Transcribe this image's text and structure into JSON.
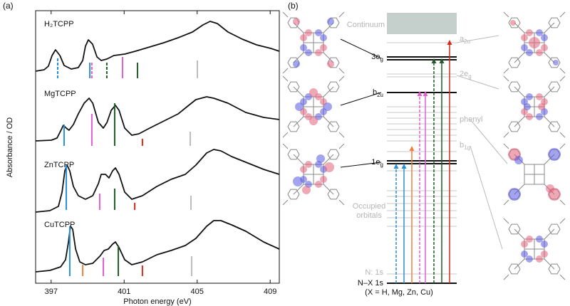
{
  "panel_labels": [
    "(a)",
    "(b)"
  ],
  "chart_data": {
    "type": "line",
    "xlabel": "Photon energy (eV)",
    "ylabel": "Absorbance / OD",
    "xlim": [
      396.15,
      409.5
    ],
    "ylim": [
      0,
      3.83
    ],
    "xticks": [
      397,
      401,
      405,
      409
    ],
    "series": [
      {
        "name": "H₂TCPP",
        "color": "#111111",
        "x": [
          396.15,
          396.62,
          396.85,
          397.05,
          397.24,
          397.48,
          397.71,
          398.1,
          398.49,
          398.73,
          398.88,
          399.04,
          399.27,
          399.51,
          399.74,
          400.05,
          400.44,
          401.03,
          401.61,
          402.4,
          403.18,
          403.96,
          404.74,
          405.32,
          405.71,
          406.1,
          406.69,
          407.47,
          408.25,
          409.03,
          409.5
        ],
        "values": [
          2.98,
          3.0,
          3.05,
          3.2,
          3.28,
          3.2,
          3.06,
          3.01,
          3.03,
          3.13,
          3.33,
          3.42,
          3.36,
          3.18,
          3.13,
          3.15,
          3.2,
          3.22,
          3.26,
          3.32,
          3.38,
          3.45,
          3.53,
          3.63,
          3.68,
          3.65,
          3.53,
          3.43,
          3.35,
          3.3,
          3.26
        ],
        "transitions": {
          "base": 2.88,
          "x": [
            397.36,
            399.12,
            399.23,
            400.05,
            400.91,
            401.73,
            405.01
          ],
          "values": [
            3.16,
            3.1,
            3.1,
            3.1,
            3.18,
            3.1,
            3.13
          ],
          "colors": [
            "#2a8fd6",
            "#2a8fd6",
            "#e060d0",
            "#1f5c2a",
            "#e060d0",
            "#1f5c2a",
            "#bdbdbd"
          ],
          "dashed": [
            true,
            false,
            true,
            true,
            false,
            false,
            false
          ]
        }
      },
      {
        "name": "MgTCPP",
        "color": "#111111",
        "x": [
          396.15,
          397.01,
          397.32,
          397.56,
          397.67,
          397.83,
          397.98,
          398.22,
          398.49,
          398.81,
          399.08,
          399.28,
          399.59,
          399.86,
          400.06,
          400.29,
          400.52,
          400.72,
          401.03,
          401.42,
          401.81,
          402.4,
          403.18,
          403.96,
          404.54,
          404.93,
          405.52,
          405.91,
          406.69,
          407.66,
          408.64,
          409.5
        ],
        "values": [
          2.0,
          2.01,
          2.04,
          2.16,
          2.22,
          2.18,
          2.15,
          2.23,
          2.38,
          2.53,
          2.6,
          2.53,
          2.26,
          2.18,
          2.26,
          2.43,
          2.5,
          2.43,
          2.18,
          2.08,
          2.1,
          2.18,
          2.28,
          2.38,
          2.5,
          2.58,
          2.62,
          2.6,
          2.53,
          2.4,
          2.33,
          2.3
        ],
        "transitions": {
          "base": 1.93,
          "x": [
            397.71,
            399.23,
            400.48,
            402.0,
            404.62
          ],
          "values": [
            2.23,
            2.38,
            2.53,
            2.03,
            2.13
          ],
          "colors": [
            "#2a8fd6",
            "#e060d0",
            "#1f5c2a",
            "#d42a1a",
            "#bdbdbd"
          ],
          "dashed": [
            false,
            false,
            false,
            false,
            false
          ]
        }
      },
      {
        "name": "ZnTCPP",
        "color": "#111111",
        "x": [
          396.15,
          396.93,
          397.4,
          397.6,
          397.75,
          397.87,
          398.02,
          398.22,
          398.49,
          398.88,
          399.28,
          399.59,
          399.74,
          399.98,
          400.17,
          400.37,
          400.52,
          400.72,
          401.03,
          401.42,
          402.0,
          402.79,
          403.57,
          404.35,
          404.93,
          405.52,
          405.91,
          406.3,
          406.89,
          407.67,
          408.64,
          409.5
        ],
        "values": [
          1.0,
          1.02,
          1.08,
          1.28,
          1.58,
          1.66,
          1.58,
          1.36,
          1.23,
          1.18,
          1.23,
          1.4,
          1.53,
          1.53,
          1.48,
          1.58,
          1.62,
          1.53,
          1.28,
          1.18,
          1.23,
          1.36,
          1.46,
          1.53,
          1.66,
          1.83,
          1.88,
          1.86,
          1.78,
          1.7,
          1.6,
          1.53
        ],
        "transitions": {
          "base": 1.03,
          "x": [
            397.83,
            399.66,
            400.48,
            401.58,
            404.66
          ],
          "values": [
            1.66,
            1.26,
            1.33,
            1.13,
            1.23
          ],
          "colors": [
            "#2a8fd6",
            "#e060d0",
            "#1f5c2a",
            "#d42a1a",
            "#bdbdbd"
          ],
          "dashed": [
            false,
            false,
            false,
            false,
            false
          ]
        }
      },
      {
        "name": "CuTCPP",
        "color": "#111111",
        "x": [
          396.15,
          396.93,
          397.52,
          397.79,
          397.95,
          398.06,
          398.18,
          398.34,
          398.57,
          398.88,
          399.28,
          399.67,
          399.9,
          400.13,
          400.37,
          400.52,
          400.72,
          401.03,
          401.42,
          402.0,
          402.79,
          403.57,
          404.35,
          404.93,
          405.52,
          405.91,
          406.3,
          406.89,
          407.67,
          408.64,
          409.5
        ],
        "values": [
          0.16,
          0.18,
          0.23,
          0.33,
          0.58,
          0.8,
          0.76,
          0.48,
          0.3,
          0.26,
          0.28,
          0.38,
          0.46,
          0.48,
          0.55,
          0.58,
          0.5,
          0.33,
          0.26,
          0.3,
          0.4,
          0.46,
          0.53,
          0.63,
          0.8,
          0.88,
          0.88,
          0.82,
          0.73,
          0.58,
          0.48
        ],
        "transitions": {
          "base": 0.1,
          "x": [
            398.02,
            398.73,
            399.86,
            400.68,
            402.0,
            404.7
          ],
          "values": [
            0.8,
            0.26,
            0.36,
            0.53,
            0.25,
            0.38
          ],
          "colors": [
            "#2a8fd6",
            "#f07f3c",
            "#e060d0",
            "#1f5c2a",
            "#d42a1a",
            "#bdbdbd"
          ],
          "dashed": [
            false,
            false,
            false,
            false,
            false,
            false
          ]
        }
      }
    ]
  },
  "diagram": {
    "continuum": "Continuum",
    "levels": [
      {
        "label": "3e",
        "sub": "g"
      },
      {
        "label": "b",
        "sub": "2u"
      },
      {
        "label": "1e",
        "sub": "g"
      }
    ],
    "grey_levels": [
      {
        "label": "a",
        "sub": "2u"
      },
      {
        "label": "2e",
        "sub": "g"
      },
      {
        "label": "phenyl"
      },
      {
        "label": "b",
        "sub": "1g"
      }
    ],
    "occupied": [
      "Occupied",
      "orbitals"
    ],
    "n1s": "N: 1s",
    "core": "N–X 1s",
    "note": "(X = H, Mg, Zn, Cu)"
  }
}
